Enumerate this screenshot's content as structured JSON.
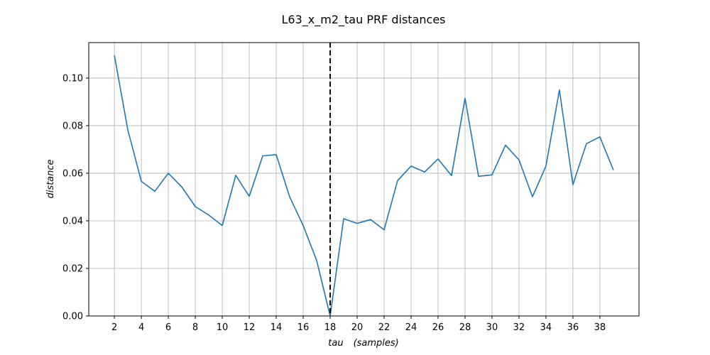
{
  "chart_data": {
    "type": "line",
    "title": "L63_x_m2_tau PRF distances",
    "xlabel_parts": [
      "tau",
      "(samples)"
    ],
    "ylabel": "distance",
    "xlim": [
      0.1,
      40.9
    ],
    "ylim": [
      0,
      0.1149
    ],
    "x_ticks": [
      2,
      4,
      6,
      8,
      10,
      12,
      14,
      16,
      18,
      20,
      22,
      24,
      26,
      28,
      30,
      32,
      34,
      36,
      38
    ],
    "y_ticks": [
      0.0,
      0.02,
      0.04,
      0.06,
      0.08,
      0.1
    ],
    "y_tick_labels": [
      "0.00",
      "0.02",
      "0.04",
      "0.06",
      "0.08",
      "0.10"
    ],
    "grid": true,
    "series": [
      {
        "color": "#1f77b4",
        "x": [
          2,
          3,
          4,
          5,
          6,
          7,
          8,
          9,
          10,
          11,
          12,
          13,
          14,
          15,
          16,
          17,
          18,
          19,
          20,
          21,
          22,
          23,
          24,
          25,
          26,
          27,
          28,
          29,
          30,
          31,
          32,
          33,
          34,
          35,
          36,
          37,
          38,
          39
        ],
        "y": [
          0.1096,
          0.0781,
          0.0566,
          0.0524,
          0.06,
          0.0542,
          0.046,
          0.0424,
          0.038,
          0.0591,
          0.0503,
          0.0673,
          0.0678,
          0.05,
          0.038,
          0.0233,
          0.0,
          0.0409,
          0.0389,
          0.0405,
          0.0362,
          0.0569,
          0.063,
          0.0605,
          0.066,
          0.059,
          0.0915,
          0.0587,
          0.0593,
          0.0718,
          0.0656,
          0.0501,
          0.063,
          0.095,
          0.0552,
          0.0724,
          0.0753,
          0.0613
        ]
      }
    ],
    "vline": {
      "x": 18,
      "color": "#000000",
      "style": "dashed"
    }
  }
}
